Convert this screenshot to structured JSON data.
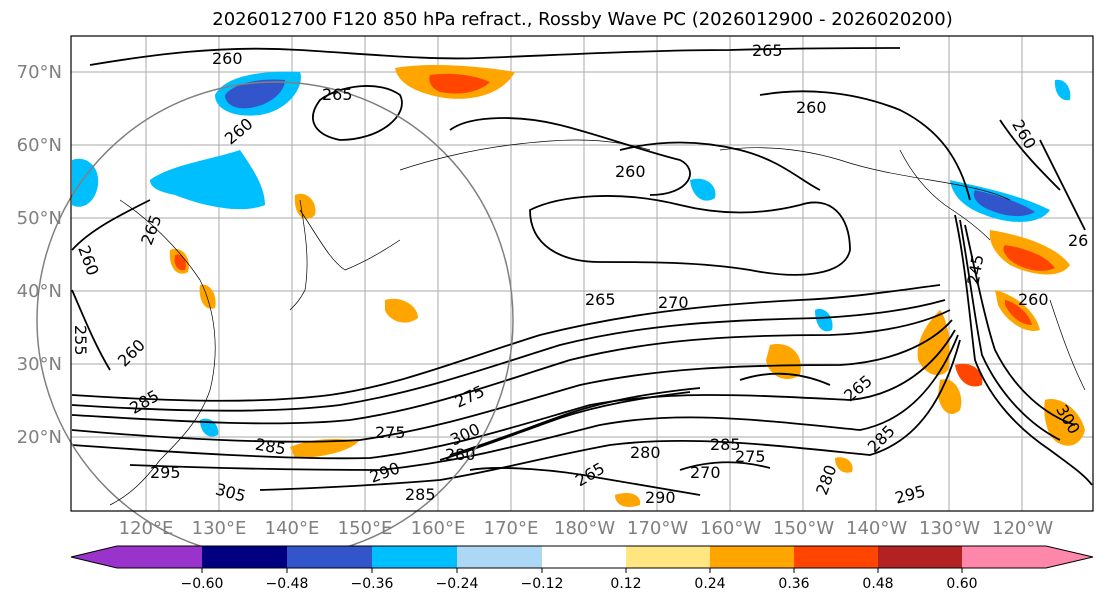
{
  "title": "2026012700 F120 850 hPa refract., Rossby Wave PC (2026012900 - 2026020200)",
  "lat_labels": [
    "70°N",
    "60°N",
    "50°N",
    "40°N",
    "30°N",
    "20°N"
  ],
  "lon_labels": [
    "120°E",
    "130°E",
    "140°E",
    "150°E",
    "160°E",
    "170°E",
    "180°W",
    "170°W",
    "160°W",
    "150°W",
    "140°W",
    "130°W",
    "120°W"
  ],
  "contour_labels": [
    "260",
    "265",
    "260",
    "265",
    "260",
    "260",
    "265",
    "260",
    "265",
    "270",
    "275",
    "280",
    "285",
    "290",
    "295",
    "300",
    "305",
    "285",
    "275",
    "255",
    "260",
    "245",
    "260",
    "265",
    "260",
    "285",
    "280",
    "285",
    "290",
    "295",
    "300",
    "275",
    "270",
    "265",
    "285",
    "280",
    "26"
  ],
  "colorbar": {
    "ticks": [
      "−0.60",
      "−0.48",
      "−0.36",
      "−0.24",
      "−0.12",
      "0.12",
      "0.24",
      "0.36",
      "0.48",
      "0.60"
    ],
    "colors": [
      "#9933cc",
      "#000080",
      "#3355cc",
      "#00bfff",
      "#add8f5",
      "#ffffff",
      "#ffe680",
      "#ffa500",
      "#ff4500",
      "#b22222",
      "#ff88aa"
    ]
  }
}
